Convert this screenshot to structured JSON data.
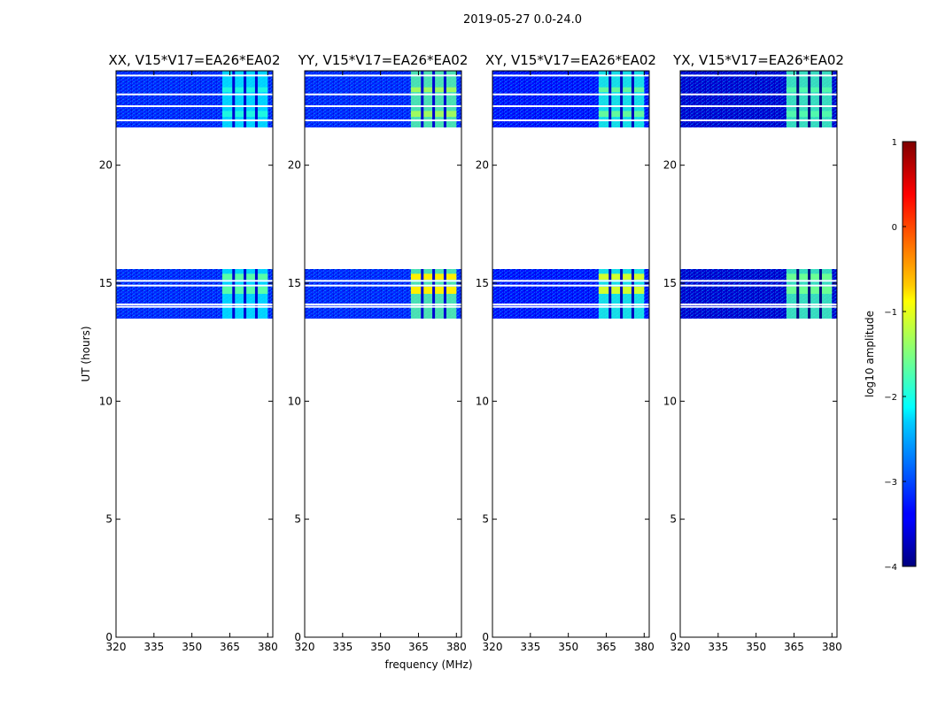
{
  "suptitle": "2019-05-27 0.0-24.0",
  "chart_data": {
    "type": "heatmap",
    "suptitle": "2019-05-27 0.0-24.0",
    "xlabel": "frequency (MHz)",
    "ylabel": "UT (hours)",
    "xlim": [
      320,
      382
    ],
    "ylim": [
      0,
      24
    ],
    "xticks": [
      320,
      335,
      350,
      365,
      380
    ],
    "yticks": [
      0,
      5,
      10,
      15,
      20
    ],
    "panels": [
      {
        "title": "XX, V15*V17=EA26*EA02",
        "background_level": -3.2,
        "rfi_level": -2.2,
        "strong_level": -1.7
      },
      {
        "title": "YY, V15*V17=EA26*EA02",
        "background_level": -3.2,
        "rfi_level": -1.7,
        "strong_level": -0.8
      },
      {
        "title": "XY, V15*V17=EA26*EA02",
        "background_level": -3.3,
        "rfi_level": -2.0,
        "strong_level": -1.1
      },
      {
        "title": "YX, V15*V17=EA26*EA02",
        "background_level": -3.6,
        "rfi_level": -1.8,
        "strong_level": -1.6
      }
    ],
    "data_blocks_hours": [
      [
        21.6,
        24.0
      ],
      [
        13.5,
        15.6
      ]
    ],
    "flagged_hours": [
      23.8,
      23.0,
      22.5,
      21.9,
      15.1,
      14.9,
      14.1,
      14.0
    ],
    "rfi_band_mhz": [
      362,
      380
    ],
    "rfi_subband_gaps_mhz": [
      366.5,
      371,
      375.5
    ],
    "colorbar": {
      "label": "log10 amplitude",
      "min": -4,
      "max": 1,
      "ticks": [
        1,
        0,
        -1,
        -2,
        -3,
        -4
      ],
      "colormap": "jet"
    }
  }
}
